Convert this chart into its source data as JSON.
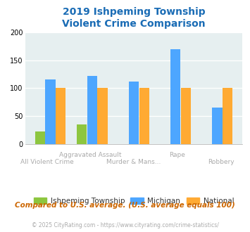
{
  "title": "2019 Ishpeming Township\nViolent Crime Comparison",
  "categories": [
    "All Violent Crime",
    "Aggravated Assault",
    "Murder & Mans...",
    "Rape",
    "Robbery"
  ],
  "ishpeming": [
    22,
    35,
    0,
    0,
    0
  ],
  "michigan": [
    116,
    122,
    112,
    170,
    65
  ],
  "national": [
    100,
    100,
    100,
    100,
    100
  ],
  "colors": {
    "ishpeming": "#8dc63f",
    "michigan": "#4da6ff",
    "national": "#ffaa33"
  },
  "ylim": [
    0,
    200
  ],
  "yticks": [
    0,
    50,
    100,
    150,
    200
  ],
  "background_color": "#e6eff0",
  "title_color": "#1a6cb5",
  "subtitle_text": "Compared to U.S. average. (U.S. average equals 100)",
  "footer_text": "© 2025 CityRating.com - https://www.cityrating.com/crime-statistics/",
  "legend_labels": [
    "Ishpeming Township",
    "Michigan",
    "National"
  ],
  "top_row_labels": [
    "Aggravated Assault",
    "Rape"
  ],
  "bottom_row_labels": [
    "All Violent Crime",
    "Murder & Mans...",
    "Robbery"
  ],
  "label_color": "#aaaaaa",
  "subtitle_color": "#cc6600",
  "footer_color": "#aaaaaa"
}
